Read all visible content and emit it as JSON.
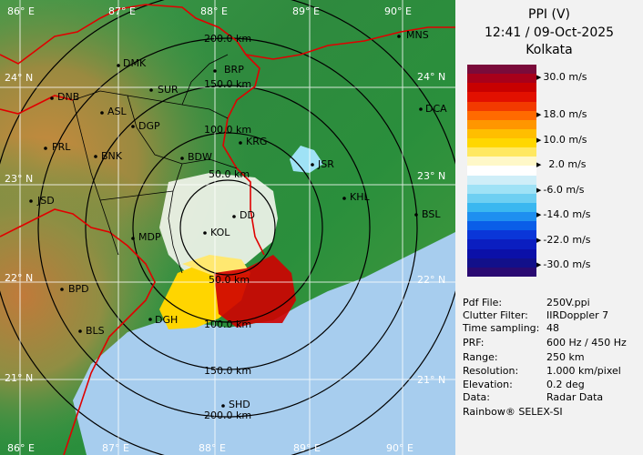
{
  "header": {
    "product": "PPI (V)",
    "timestamp": "12:41 / 09-Oct-2025",
    "station": "Kolkata"
  },
  "legend": {
    "unit_labels": [
      "30.0 m/s",
      "18.0 m/s",
      "10.0 m/s",
      "2.0 m/s",
      "-6.0 m/s",
      "-14.0 m/s",
      "-22.0 m/s",
      "-30.0 m/s"
    ],
    "colors": [
      "#7a0b3a",
      "#a8001a",
      "#c80000",
      "#e21000",
      "#f23a00",
      "#ff6a00",
      "#ff9600",
      "#ffbe00",
      "#ffd700",
      "#ffe860",
      "#fff8c8",
      "#ffffff",
      "#cfeef8",
      "#9fe2f6",
      "#6ecff2",
      "#3ab7f0",
      "#1e8ff0",
      "#0a5ee8",
      "#0a36d8",
      "#0b1ec0",
      "#0b10a8",
      "#12108a",
      "#2a0a72"
    ]
  },
  "info": [
    {
      "label": "Pdf File:",
      "value": "250V.ppi"
    },
    {
      "label": "Clutter Filter:",
      "value": "IIRDoppler 7"
    },
    {
      "label": "Time sampling:",
      "value": "48"
    },
    {
      "label": "PRF:",
      "value": "600 Hz / 450 Hz"
    },
    {
      "label": "Range:",
      "value": "250 km"
    },
    {
      "label": "Resolution:",
      "value": "1.000 km/pixel"
    },
    {
      "label": "Elevation:",
      "value": "0.2 deg"
    },
    {
      "label": "Data:",
      "value": "Radar Data"
    }
  ],
  "footer": "Rainbow® SELEX-SI",
  "map": {
    "longitudes_top": [
      "86° E",
      "87° E",
      "88° E",
      "89° E",
      "90° E"
    ],
    "longitudes_bottom": [
      "86° E",
      "87° E",
      "88° E",
      "89° E",
      "90° E"
    ],
    "latitudes_left": [
      "24° N",
      "23° N",
      "22° N",
      "21° N"
    ],
    "latitudes_right": [
      "24° N",
      "23° N",
      "22° N",
      "21° N"
    ],
    "range_labels": [
      "200.0 km",
      "150.0 km",
      "100.0 km",
      "50.0 km",
      "50.0 km",
      "100.0 km",
      "150.0 km",
      "200.0 km"
    ],
    "places": [
      "MNS",
      "DMK",
      "BRP",
      "DNB",
      "SUR",
      "ASL",
      "DGP",
      "DCA",
      "PRL",
      "BNK",
      "KRG",
      "BDW",
      "JSR",
      "KHL",
      "JSD",
      "DD",
      "BSL",
      "MDP",
      "KOL",
      "BPD",
      "DGH",
      "BLS",
      "SHD"
    ]
  }
}
